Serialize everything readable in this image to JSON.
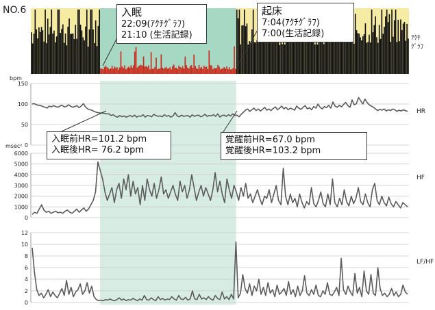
{
  "panel_id": "NO.6",
  "annotations": {
    "sleep_onset": {
      "title": "入眠",
      "line1": "22:09(ｱｸﾁｸﾞﾗﾌ)",
      "line2": "21:10 (生活記録)"
    },
    "wake_up": {
      "title": "起床",
      "line1": "7:04(ｱｸﾁｸﾞﾗﾌ)",
      "line2": "7:00(生活記録)"
    },
    "sleep_onset_hr": {
      "line1": "入眠前HR=101.2 bpm",
      "line2": "入眠後HR= 76.2 bpm"
    },
    "wake_hr": {
      "line1": "覚醒前HR=67.0 bpm",
      "line2": "覚醒後HR=103.2 bpm"
    }
  },
  "colors": {
    "sleep_band": "#a6d8c4",
    "actigraph_bg": "#f6eba2",
    "actigraph_bar": "#111111",
    "sleep_activity": "#cc2a1a",
    "line": "#5a5a5a",
    "grid": "#c9c9c9"
  },
  "chart_data": [
    {
      "type": "bar",
      "title": "",
      "series_label": "ｱｸﾁｸﾞﾗﾌ",
      "grid": false,
      "sleep_window_fraction": [
        0.183,
        0.543
      ],
      "activity_profile": [
        {
          "segment": "before_sleep",
          "typical_level": 0.75,
          "color": "#111111"
        },
        {
          "segment": "sleep",
          "typical_level": 0.12,
          "color": "#cc2a1a"
        },
        {
          "segment": "after_wake",
          "typical_level": 0.8,
          "color": "#111111"
        }
      ]
    },
    {
      "type": "line",
      "ylabel": "bpm",
      "series_label": "HR",
      "ylim": [
        0,
        150
      ],
      "yticks": [
        0,
        50,
        100,
        150
      ],
      "grid": true,
      "values": [
        100,
        101,
        98,
        97,
        96,
        94,
        92,
        90,
        95,
        93,
        96,
        94,
        92,
        95,
        97,
        93,
        94,
        98,
        95,
        92,
        94,
        96,
        91,
        95,
        101,
        93,
        88,
        86,
        85,
        82,
        80,
        79,
        78,
        78,
        77,
        76,
        76,
        72,
        74,
        70,
        68,
        72,
        69,
        71,
        68,
        70,
        72,
        69,
        73,
        68,
        71,
        70,
        74,
        68,
        72,
        71,
        69,
        75,
        72,
        70,
        71,
        69,
        74,
        70,
        72,
        68,
        71,
        79,
        71,
        69,
        73,
        70,
        71,
        72,
        68,
        74,
        70,
        72,
        73,
        69,
        71,
        75,
        70,
        72,
        71,
        74,
        70,
        76,
        68,
        72,
        73,
        70,
        74,
        71,
        76,
        72,
        73,
        69,
        75,
        80,
        85,
        88,
        82,
        86,
        90,
        84,
        88,
        83,
        87,
        92,
        85,
        88,
        84,
        89,
        93,
        86,
        90,
        95,
        88,
        92,
        86,
        90,
        88,
        85,
        95,
        90,
        87,
        92,
        96,
        88,
        91,
        86,
        94,
        90,
        100,
        92,
        88,
        94,
        91,
        97,
        90,
        105,
        95,
        92,
        97,
        93,
        99,
        104,
        96,
        92,
        110,
        98,
        101,
        116,
        108,
        100,
        112,
        104,
        98,
        95,
        92,
        88,
        84,
        87,
        85,
        88,
        83,
        86,
        84,
        88,
        86,
        82,
        85,
        83,
        86,
        84,
        82
      ]
    },
    {
      "type": "line",
      "ylabel": "msec²",
      "series_label": "HF",
      "ylim": [
        0,
        6000
      ],
      "yticks": [
        0,
        1000,
        2000,
        3000,
        4000,
        5000,
        6000
      ],
      "grid": true,
      "values": [
        300,
        500,
        400,
        800,
        1200,
        700,
        500,
        600,
        400,
        500,
        600,
        450,
        500,
        400,
        600,
        700,
        500,
        400,
        600,
        800,
        500,
        700,
        900,
        600,
        800,
        1200,
        1600,
        2400,
        5200,
        4400,
        3600,
        2400,
        1600,
        2200,
        2800,
        1400,
        2600,
        3200,
        1800,
        3600,
        2600,
        4000,
        2000,
        3400,
        2200,
        2800,
        1200,
        3000,
        1600,
        3600,
        2600,
        2000,
        3200,
        1800,
        2600,
        3800,
        2200,
        2600,
        1800,
        2400,
        3000,
        2200,
        1600,
        3400,
        2400,
        3000,
        1800,
        2600,
        4000,
        2800,
        1600,
        2400,
        3000,
        2000,
        2800,
        2200,
        1600,
        2600,
        4200,
        2400,
        3400,
        2200,
        1400,
        3600,
        2600,
        1800,
        3000,
        2400,
        1600,
        2800,
        2000,
        3200,
        1800,
        2200,
        1400,
        2000,
        2600,
        1800,
        1200,
        2000,
        1800,
        2600,
        1400,
        2200,
        3000,
        1600,
        1200,
        4600,
        2000,
        1200,
        2200,
        1400,
        1800,
        1000,
        2200,
        1400,
        900,
        1500,
        1200,
        2800,
        1300,
        1000,
        1600,
        2400,
        1300,
        1000,
        2200,
        1200,
        3600,
        1400,
        1000,
        1800,
        1200,
        2600,
        1500,
        1100,
        2000,
        1300,
        1800,
        2800,
        1500,
        1200,
        2200,
        1400,
        1000,
        2600,
        3200,
        1600,
        1200,
        2000,
        1400,
        1100,
        1900,
        1300,
        1000,
        1500,
        1200,
        900,
        1400,
        1200,
        1000
      ]
    },
    {
      "type": "line",
      "series_label": "LF/HF",
      "ylim": [
        0,
        12
      ],
      "yticks": [
        0,
        2,
        4,
        6,
        8,
        10,
        12
      ],
      "grid": true,
      "values": [
        9.4,
        5.2,
        2.2,
        1.2,
        1.6,
        0.8,
        1.4,
        2.2,
        1.0,
        1.8,
        1.2,
        0.8,
        1.6,
        2.4,
        1.2,
        3.8,
        1.4,
        2.6,
        1.0,
        1.8,
        2.2,
        3.2,
        1.4,
        2.0,
        3.4,
        1.6,
        2.8,
        1.0,
        0.5,
        0.3,
        0.4,
        0.3,
        0.5,
        0.4,
        0.6,
        0.4,
        0.3,
        0.5,
        0.8,
        0.4,
        0.6,
        0.3,
        0.5,
        0.4,
        0.7,
        0.5,
        0.3,
        0.6,
        0.4,
        1.2,
        0.5,
        0.4,
        0.8,
        0.5,
        0.3,
        1.0,
        0.5,
        0.7,
        0.4,
        0.6,
        0.5,
        1.0,
        0.6,
        0.4,
        1.2,
        0.6,
        0.5,
        0.9,
        0.4,
        0.6,
        2.0,
        0.6,
        0.5,
        1.4,
        0.6,
        0.8,
        0.5,
        1.0,
        0.6,
        0.4,
        1.2,
        0.7,
        0.5,
        1.8,
        0.6,
        1.0,
        0.5,
        1.4,
        0.6,
        10.4,
        0.8,
        1.6,
        4.8,
        2.4,
        1.6,
        3.2,
        1.2,
        2.8,
        2.0,
        4.0,
        1.4,
        2.6,
        1.2,
        3.4,
        1.6,
        2.2,
        1.0,
        3.0,
        1.4,
        1.8,
        2.4,
        1.2,
        3.6,
        1.4,
        2.2,
        1.0,
        2.8,
        1.2,
        2.0,
        4.6,
        1.6,
        1.2,
        2.2,
        1.4,
        3.0,
        1.2,
        1.0,
        2.0,
        1.4,
        3.4,
        1.4,
        1.2,
        1.8,
        2.6,
        1.2,
        7.6,
        2.2,
        1.4,
        2.8,
        1.8,
        1.2,
        5.0,
        1.6,
        2.6,
        1.0,
        5.4,
        2.0,
        1.4,
        4.8,
        1.6,
        1.2,
        6.0,
        2.4,
        1.2,
        1.6,
        1.0,
        1.4,
        2.4,
        1.2,
        1.8,
        1.0,
        1.4,
        3.0,
        1.8,
        1.4
      ]
    }
  ]
}
